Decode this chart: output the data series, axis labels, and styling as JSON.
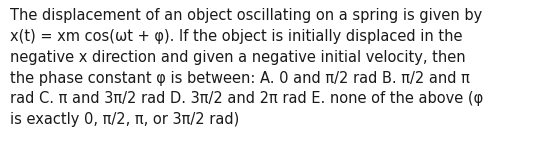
{
  "text": "The displacement of an object oscillating on a spring is given by\nx(t) = xm cos(ωt + φ). If the object is initially displaced in the\nnegative x direction and given a negative initial velocity, then\nthe phase constant φ is between: A. 0 and π/2 rad B. π/2 and π\nrad C. π and 3π/2 rad D. 3π/2 and 2π rad E. none of the above (φ\nis exactly 0, π/2, π, or 3π/2 rad)",
  "background_color": "#ffffff",
  "text_color": "#1a1a1a",
  "font_size": 10.5,
  "font_family": "DejaVu Sans"
}
